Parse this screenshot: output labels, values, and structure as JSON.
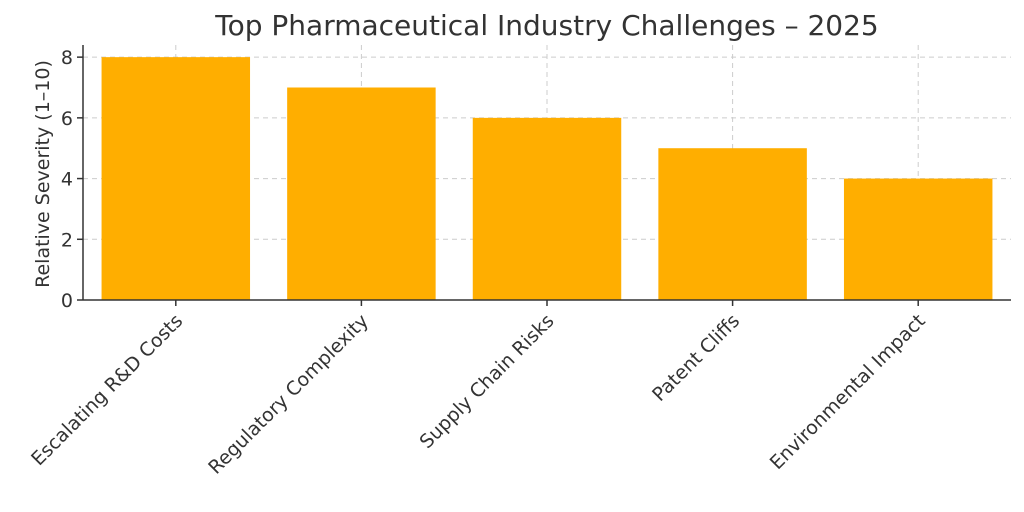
{
  "chart_data": {
    "type": "bar",
    "title": "Top Pharmaceutical Industry Challenges – 2025",
    "xlabel": "",
    "ylabel": "Relative Severity (1–10)",
    "categories": [
      "Escalating R&D Costs",
      "Regulatory Complexity",
      "Supply Chain Risks",
      "Patent Cliffs",
      "Environmental Impact"
    ],
    "values": [
      8,
      7,
      6,
      5,
      4
    ],
    "ylim": [
      0,
      8.4
    ],
    "yticks": [
      0,
      2,
      4,
      6,
      8
    ],
    "grid": true,
    "bar_color": "#FFAE00"
  }
}
